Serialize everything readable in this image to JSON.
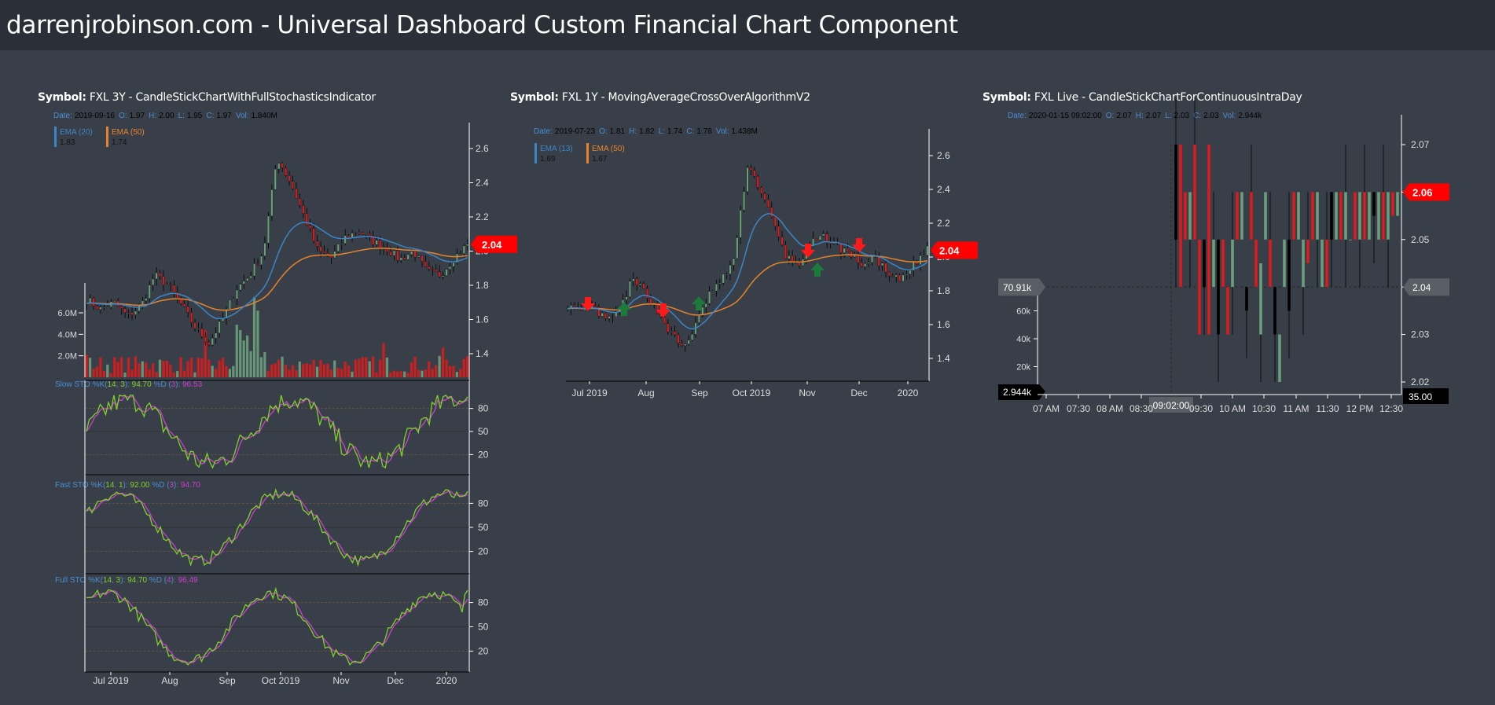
{
  "header": {
    "title": "darrenjrobinson.com - Universal Dashboard Custom Financial Chart Component"
  },
  "charts": [
    {
      "symbol_label": "Symbol:",
      "symbol_text": "FXL 3Y - CandleStickChartWithFullStochasticsIndicator",
      "ohlc": {
        "date_label": "Date:",
        "date": "2019-09-16",
        "o_label": "O:",
        "o": "1.97",
        "h_label": "H:",
        "h": "2.00",
        "l_label": "L:",
        "l": "1.95",
        "c_label": "C:",
        "c": "1.97",
        "vol_label": "Vol:",
        "vol": "1.840M"
      },
      "ema": [
        {
          "name": "EMA (20)",
          "value": "1.83",
          "color": "#3a86c8"
        },
        {
          "name": "EMA (50)",
          "value": "1.74",
          "color": "#e8832a"
        }
      ],
      "price_ticks": [
        "2.6",
        "2.4",
        "2.2",
        "2.0",
        "1.8",
        "1.6",
        "1.4"
      ],
      "last_price": "2.04",
      "volume_ticks": [
        "6.0M",
        "4.0M",
        "2.0M"
      ],
      "x_ticks": [
        "Jul 2019",
        "Aug",
        "Sep",
        "Oct 2019",
        "Nov",
        "Dec",
        "2020"
      ],
      "stochastics": [
        {
          "prefix": "Slow STO %K(",
          "p1": "14",
          "comma": ", ",
          "p2": "3",
          "close": "): ",
          "k": "94.70",
          "d_label": " %D (",
          "d_p": "3",
          "d_close": "): ",
          "d": "96.53",
          "ticks": [
            "80",
            "50",
            "20"
          ]
        },
        {
          "prefix": "Fast STO %K(",
          "p1": "14",
          "comma": ", ",
          "p2": "1",
          "close": "): ",
          "k": "92.00",
          "d_label": " %D (",
          "d_p": "3",
          "d_close": "): ",
          "d": "94.70",
          "ticks": [
            "80",
            "50",
            "20"
          ]
        },
        {
          "prefix": "Full STO %K(",
          "p1": "14",
          "comma": ", ",
          "p2": "3",
          "close": "): ",
          "k": "94.70",
          "d_label": " %D (",
          "d_p": "4",
          "d_close": "): ",
          "d": "96.49",
          "ticks": [
            "80",
            "50",
            "20"
          ]
        }
      ]
    },
    {
      "symbol_label": "Symbol:",
      "symbol_text": "FXL 1Y - MovingAverageCrossOverAlgorithmV2",
      "ohlc": {
        "date_label": "Date:",
        "date": "2019-07-23",
        "o_label": "O:",
        "o": "1.81",
        "h_label": "H:",
        "h": "1.82",
        "l_label": "L:",
        "l": "1.74",
        "c_label": "C:",
        "c": "1.78",
        "vol_label": "Vol:",
        "vol": "1.438M"
      },
      "ema": [
        {
          "name": "EMA (13)",
          "value": "1.69",
          "color": "#3a86c8"
        },
        {
          "name": "EMA (50)",
          "value": "1.67",
          "color": "#e8832a"
        }
      ],
      "price_ticks": [
        "2.6",
        "2.4",
        "2.2",
        "2.0",
        "1.8",
        "1.6",
        "1.4"
      ],
      "last_price": "2.04",
      "x_ticks": [
        "Jul 2019",
        "Aug",
        "Sep",
        "Oct 2019",
        "Nov",
        "Dec",
        "2020"
      ]
    },
    {
      "symbol_label": "Symbol:",
      "symbol_text": "FXL Live - CandleStickChartForContinuousIntraDay",
      "ohlc": {
        "date_label": "Date:",
        "date": "2020-01-15 09:02:00",
        "o_label": "O:",
        "o": "2.07",
        "h_label": "H:",
        "h": "2.07",
        "l_label": "L:",
        "l": "2.03",
        "c_label": "C:",
        "c": "2.03",
        "vol_label": "Vol:",
        "vol": "2.944k"
      },
      "price_ticks": [
        "2.07",
        "2.06",
        "2.05",
        "2.04",
        "2.03",
        "2.02"
      ],
      "last_price": "2.06",
      "cursor_price": "2.04",
      "cursor_volume": "70.91k",
      "volume_ticks": [
        "60k",
        "40k",
        "20k"
      ],
      "volume_readout": "2.944k",
      "time_readout": "09:02:00",
      "corner_readout": "35.00",
      "x_ticks": [
        "07 AM",
        "07:30",
        "08 AM",
        "08:30",
        "09:30",
        "10 AM",
        "10:30",
        "11 AM",
        "11:30",
        "12 PM",
        "12:30"
      ]
    }
  ],
  "colors": {
    "up": "#6b9e7c",
    "down": "#d91c1c",
    "wick": "#000000",
    "ema_short": "#3a86c8",
    "ema_long": "#e8832a",
    "k_line": "#7fd12a",
    "d_line": "#cc3fd3",
    "label_blue": "#4a8ed4",
    "text_light": "#dddddd",
    "price_badge": "#ff0000",
    "cursor_badge": "#5a5f66",
    "readout_badge": "#000000"
  }
}
